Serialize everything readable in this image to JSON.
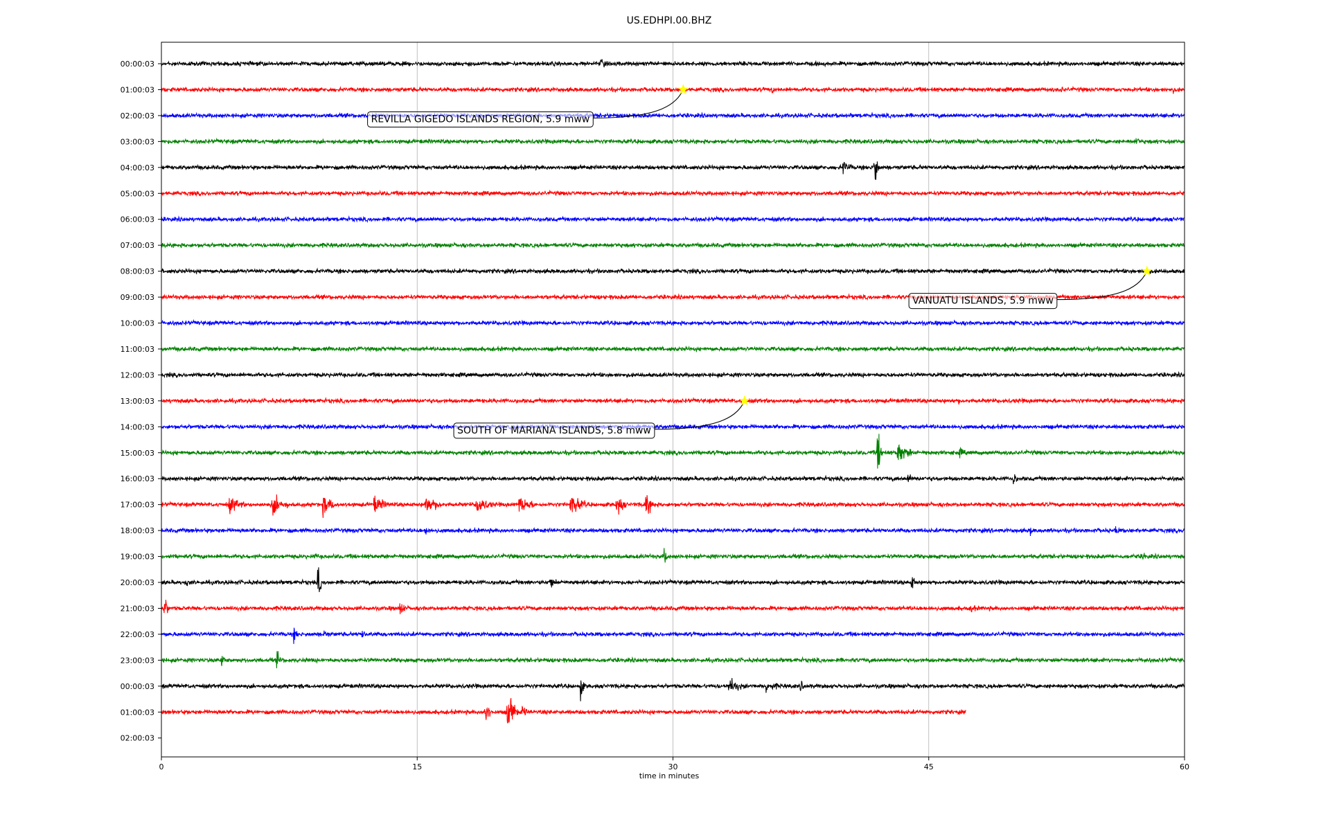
{
  "chart_data": {
    "type": "line",
    "title": "US.EDHPI.00.BHZ",
    "xlabel": "time in minutes",
    "ylabel": "",
    "xlim": [
      0,
      60
    ],
    "xticks": [
      0,
      15,
      30,
      45,
      60
    ],
    "grid": "vertical",
    "trace_colors": [
      "#000000",
      "#ff0000",
      "#0000ff",
      "#008000"
    ],
    "rows": [
      "00:00:03",
      "01:00:03",
      "02:00:03",
      "03:00:03",
      "04:00:03",
      "05:00:03",
      "06:00:03",
      "07:00:03",
      "08:00:03",
      "09:00:03",
      "10:00:03",
      "11:00:03",
      "12:00:03",
      "13:00:03",
      "14:00:03",
      "15:00:03",
      "16:00:03",
      "17:00:03",
      "18:00:03",
      "19:00:03",
      "20:00:03",
      "21:00:03",
      "22:00:03",
      "23:00:03",
      "00:00:03",
      "01:00:03",
      "02:00:03"
    ],
    "last_row_end_minute": 47.2,
    "events": [
      {
        "label": "REVILLA GIGEDO ISLANDS REGION, 5.9 mww",
        "row": 1,
        "minute": 30.6
      },
      {
        "label": "VANUATU ISLANDS, 5.9 mww",
        "row": 8,
        "minute": 57.8
      },
      {
        "label": "SOUTH OF MARIANA ISLANDS, 5.8 mww",
        "row": 13,
        "minute": 34.2
      }
    ],
    "event_marker_color": "#ffff00"
  }
}
